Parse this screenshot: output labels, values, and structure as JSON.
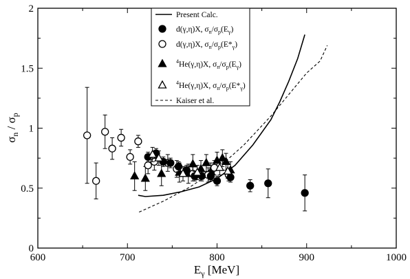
{
  "chart_data": {
    "type": "scatter",
    "title": "",
    "xlabel_main": "E",
    "xlabel_sub": "γ",
    "xlabel_rest": " [MeV]",
    "ylabel_parts": [
      "σ",
      "n",
      " / σ",
      "p"
    ],
    "xlim": [
      600,
      1000
    ],
    "ylim": [
      0,
      2
    ],
    "x_ticks": [
      600,
      700,
      800,
      900,
      1000
    ],
    "x_tick_labels": [
      "600",
      "700",
      "800",
      "900",
      "1000"
    ],
    "y_ticks": [
      0,
      0.5,
      1,
      1.5,
      2
    ],
    "y_tick_labels": [
      "0",
      "0.5",
      "1",
      "1.5",
      "2"
    ],
    "grid": false,
    "legend_position": "top-center",
    "legend": [
      {
        "key": "present",
        "style": "solid-line",
        "label": "Present Calc."
      },
      {
        "key": "d_filled",
        "style": "filled-circle",
        "label_parts": [
          "d(γ,η)X, σ",
          "n",
          "/σ",
          "p",
          "(E",
          "γ",
          ")"
        ]
      },
      {
        "key": "d_open",
        "style": "open-circle",
        "label_parts": [
          "d(γ,η)X, σ",
          "n",
          "/σ",
          "p",
          "(E*",
          "γ",
          ")"
        ]
      },
      {
        "key": "he_filled",
        "style": "filled-triangle",
        "label_sup": "4",
        "label_parts": [
          "He(γ,η)X, σ",
          "n",
          "/σ",
          "p",
          "(E",
          "γ",
          ")"
        ]
      },
      {
        "key": "he_open",
        "style": "open-triangle",
        "label_sup": "4",
        "label_parts": [
          "He(γ,η)X, σ",
          "n",
          "/σ",
          "p",
          "(E*",
          "γ",
          ")"
        ]
      },
      {
        "key": "kaiser",
        "style": "dashed-line",
        "label": "Kaiser et al."
      }
    ],
    "series": [
      {
        "key": "present",
        "style": "solid-line",
        "x": [
          712,
          720,
          740,
          760,
          780,
          800,
          820,
          840,
          860,
          870,
          880,
          890,
          898
        ],
        "y": [
          0.44,
          0.43,
          0.44,
          0.47,
          0.51,
          0.58,
          0.69,
          0.86,
          1.07,
          1.22,
          1.39,
          1.58,
          1.78
        ]
      },
      {
        "key": "kaiser",
        "style": "dashed-line",
        "x": [
          713,
          740,
          770,
          800,
          830,
          860,
          880,
          900,
          915,
          923
        ],
        "y": [
          0.3,
          0.39,
          0.51,
          0.66,
          0.86,
          1.1,
          1.28,
          1.46,
          1.56,
          1.69
        ]
      },
      {
        "key": "d_open",
        "style": "open-circle",
        "points": [
          {
            "x": 655,
            "y": 0.94,
            "err": 0.4
          },
          {
            "x": 665,
            "y": 0.56,
            "err": 0.15
          },
          {
            "x": 675,
            "y": 0.97,
            "err": 0.14
          },
          {
            "x": 683,
            "y": 0.83,
            "err": 0.09
          },
          {
            "x": 693,
            "y": 0.92,
            "err": 0.07
          },
          {
            "x": 703,
            "y": 0.76,
            "err": 0.06
          },
          {
            "x": 712,
            "y": 0.89,
            "err": 0.05
          },
          {
            "x": 723,
            "y": 0.69,
            "err": 0.07
          },
          {
            "x": 730,
            "y": 0.72,
            "err": 0.07
          },
          {
            "x": 745,
            "y": 0.71,
            "err": 0.07
          },
          {
            "x": 755,
            "y": 0.66,
            "err": 0.07
          },
          {
            "x": 773,
            "y": 0.62,
            "err": 0.06
          },
          {
            "x": 790,
            "y": 0.61,
            "err": 0.06
          },
          {
            "x": 797,
            "y": 0.67,
            "err": 0.06
          },
          {
            "x": 813,
            "y": 0.61,
            "err": 0.05
          }
        ]
      },
      {
        "key": "d_filled",
        "style": "filled-circle",
        "points": [
          {
            "x": 723,
            "y": 0.76,
            "err": 0.04
          },
          {
            "x": 732,
            "y": 0.79,
            "err": 0.04
          },
          {
            "x": 740,
            "y": 0.72,
            "err": 0.04
          },
          {
            "x": 748,
            "y": 0.71,
            "err": 0.04
          },
          {
            "x": 757,
            "y": 0.68,
            "err": 0.04
          },
          {
            "x": 766,
            "y": 0.65,
            "err": 0.04
          },
          {
            "x": 775,
            "y": 0.6,
            "err": 0.04
          },
          {
            "x": 783,
            "y": 0.6,
            "err": 0.04
          },
          {
            "x": 793,
            "y": 0.6,
            "err": 0.04
          },
          {
            "x": 800,
            "y": 0.56,
            "err": 0.04
          },
          {
            "x": 815,
            "y": 0.59,
            "err": 0.04
          },
          {
            "x": 837,
            "y": 0.52,
            "err": 0.05
          },
          {
            "x": 857,
            "y": 0.54,
            "err": 0.12
          },
          {
            "x": 898,
            "y": 0.46,
            "err": 0.15
          }
        ]
      },
      {
        "key": "he_filled",
        "style": "filled-triangle",
        "points": [
          {
            "x": 708,
            "y": 0.6,
            "err": 0.12
          },
          {
            "x": 720,
            "y": 0.58,
            "err": 0.1
          },
          {
            "x": 738,
            "y": 0.62,
            "err": 0.1
          },
          {
            "x": 758,
            "y": 0.63,
            "err": 0.08
          },
          {
            "x": 768,
            "y": 0.62,
            "err": 0.08
          },
          {
            "x": 773,
            "y": 0.7,
            "err": 0.08
          },
          {
            "x": 782,
            "y": 0.66,
            "err": 0.07
          },
          {
            "x": 788,
            "y": 0.71,
            "err": 0.07
          },
          {
            "x": 793,
            "y": 0.64,
            "err": 0.07
          },
          {
            "x": 800,
            "y": 0.73,
            "err": 0.07
          },
          {
            "x": 806,
            "y": 0.75,
            "err": 0.07
          },
          {
            "x": 810,
            "y": 0.72,
            "err": 0.07
          },
          {
            "x": 815,
            "y": 0.65,
            "err": 0.07
          }
        ]
      },
      {
        "key": "he_open",
        "style": "open-triangle",
        "points": [
          {
            "x": 728,
            "y": 0.78,
            "err": 0.06
          },
          {
            "x": 735,
            "y": 0.75,
            "err": 0.06
          },
          {
            "x": 762,
            "y": 0.62,
            "err": 0.06
          },
          {
            "x": 778,
            "y": 0.63,
            "err": 0.06
          },
          {
            "x": 803,
            "y": 0.67,
            "err": 0.06
          },
          {
            "x": 812,
            "y": 0.64,
            "err": 0.06
          }
        ]
      }
    ]
  }
}
